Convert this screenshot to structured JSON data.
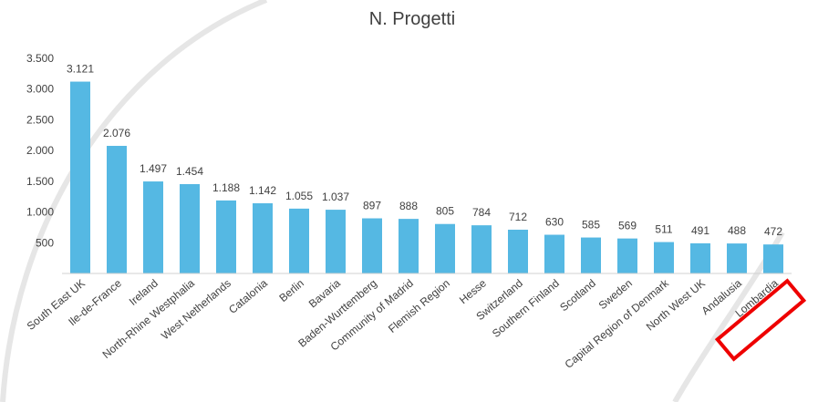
{
  "chart_data": {
    "type": "bar",
    "title": "N. Progetti",
    "xlabel": "",
    "ylabel": "",
    "ylim": [
      0,
      3500
    ],
    "yticks": [
      "500",
      "1.000",
      "1.500",
      "2.000",
      "2.500",
      "3.000",
      "3.500"
    ],
    "ytick_values": [
      500,
      1000,
      1500,
      2000,
      2500,
      3000,
      3500
    ],
    "categories": [
      "South East UK",
      "Ile-de-France",
      "Ireland",
      "North-Rhine Westphalia",
      "West Netherlands",
      "Catalonia",
      "Berlin",
      "Bavaria",
      "Baden-Wurttemberg",
      "Community of Madrid",
      "Flemish Region",
      "Hesse",
      "Switzerland",
      "Southern Finland",
      "Scotland",
      "Sweden",
      "Capital Region of Denmark",
      "North West UK",
      "Andalusia",
      "Lombardia"
    ],
    "values": [
      3121,
      2076,
      1497,
      1454,
      1188,
      1142,
      1055,
      1037,
      897,
      888,
      805,
      784,
      712,
      630,
      585,
      569,
      511,
      491,
      488,
      472
    ],
    "value_labels": [
      "3.121",
      "2.076",
      "1.497",
      "1.454",
      "1.188",
      "1.142",
      "1.055",
      "1.037",
      "897",
      "888",
      "805",
      "784",
      "712",
      "630",
      "585",
      "569",
      "511",
      "491",
      "488",
      "472"
    ],
    "highlight_category": "Lombardia",
    "grid": false,
    "legend": "none",
    "colors": {
      "bar": "#55b8e3",
      "highlight_box": "#ee0000",
      "axis": "#d0d0d0",
      "decor_curve": "#e4e4e4"
    }
  }
}
